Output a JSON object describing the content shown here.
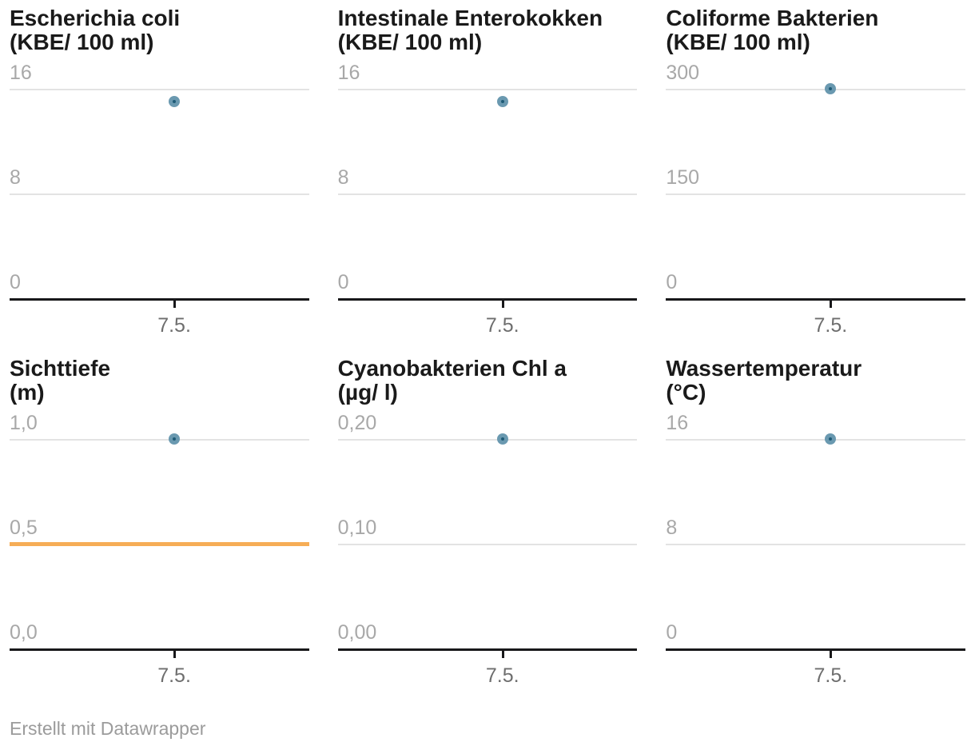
{
  "page": {
    "background": "#ffffff"
  },
  "colors": {
    "title": "#1a1a1a",
    "tick_label": "#a8a8a8",
    "x_label": "#6e6e6e",
    "gridline": "#e3e3e3",
    "axis": "#18181a",
    "point_fill": "#6a99b0",
    "point_core": "#1f5b77",
    "reference_line": "#f6ad56",
    "footer_text": "#9b9b9b"
  },
  "footer": {
    "credit_prefix": "Erstellt mit ",
    "credit_brand": "Datawrapper"
  },
  "chart_data": [
    {
      "type": "scatter",
      "title": "Escherichia coli",
      "unit": "(KBE/ 100 ml)",
      "ylim": [
        0,
        16
      ],
      "yticks": [
        "16",
        "8",
        "0"
      ],
      "ytick_values": [
        16,
        8,
        0
      ],
      "xticks": [
        "7.5."
      ],
      "points": [
        {
          "x": "7.5.",
          "y": 15
        }
      ],
      "grid": true,
      "legend": "none"
    },
    {
      "type": "scatter",
      "title": "Intestinale Enterokokken",
      "unit": "(KBE/ 100 ml)",
      "ylim": [
        0,
        16
      ],
      "yticks": [
        "16",
        "8",
        "0"
      ],
      "ytick_values": [
        16,
        8,
        0
      ],
      "xticks": [
        "7.5."
      ],
      "points": [
        {
          "x": "7.5.",
          "y": 15
        }
      ],
      "grid": true,
      "legend": "none"
    },
    {
      "type": "scatter",
      "title": "Coliforme Bakterien",
      "unit": "(KBE/ 100 ml)",
      "ylim": [
        0,
        300
      ],
      "yticks": [
        "300",
        "150",
        "0"
      ],
      "ytick_values": [
        300,
        150,
        0
      ],
      "xticks": [
        "7.5."
      ],
      "points": [
        {
          "x": "7.5.",
          "y": 300
        }
      ],
      "grid": true,
      "legend": "none"
    },
    {
      "type": "scatter",
      "title": "Sichttiefe",
      "unit": "(m)",
      "ylim": [
        0,
        1.0
      ],
      "yticks": [
        "1,0",
        "0,5",
        "0,0"
      ],
      "ytick_values": [
        1.0,
        0.5,
        0.0
      ],
      "xticks": [
        "7.5."
      ],
      "points": [
        {
          "x": "7.5.",
          "y": 1.0
        }
      ],
      "reference_line": {
        "value": 0.5,
        "color": "#f6ad56"
      },
      "grid": true,
      "legend": "none"
    },
    {
      "type": "scatter",
      "title": "Cyanobakterien Chl a",
      "unit": "(µg/ l)",
      "ylim": [
        0,
        0.2
      ],
      "yticks": [
        "0,20",
        "0,10",
        "0,00"
      ],
      "ytick_values": [
        0.2,
        0.1,
        0.0
      ],
      "xticks": [
        "7.5."
      ],
      "points": [
        {
          "x": "7.5.",
          "y": 0.2
        }
      ],
      "grid": true,
      "legend": "none"
    },
    {
      "type": "scatter",
      "title": "Wassertemperatur",
      "unit": "(°C)",
      "ylim": [
        0,
        16
      ],
      "yticks": [
        "16",
        "8",
        "0"
      ],
      "ytick_values": [
        16,
        8,
        0
      ],
      "xticks": [
        "7.5."
      ],
      "points": [
        {
          "x": "7.5.",
          "y": 16
        }
      ],
      "grid": true,
      "legend": "none"
    }
  ]
}
